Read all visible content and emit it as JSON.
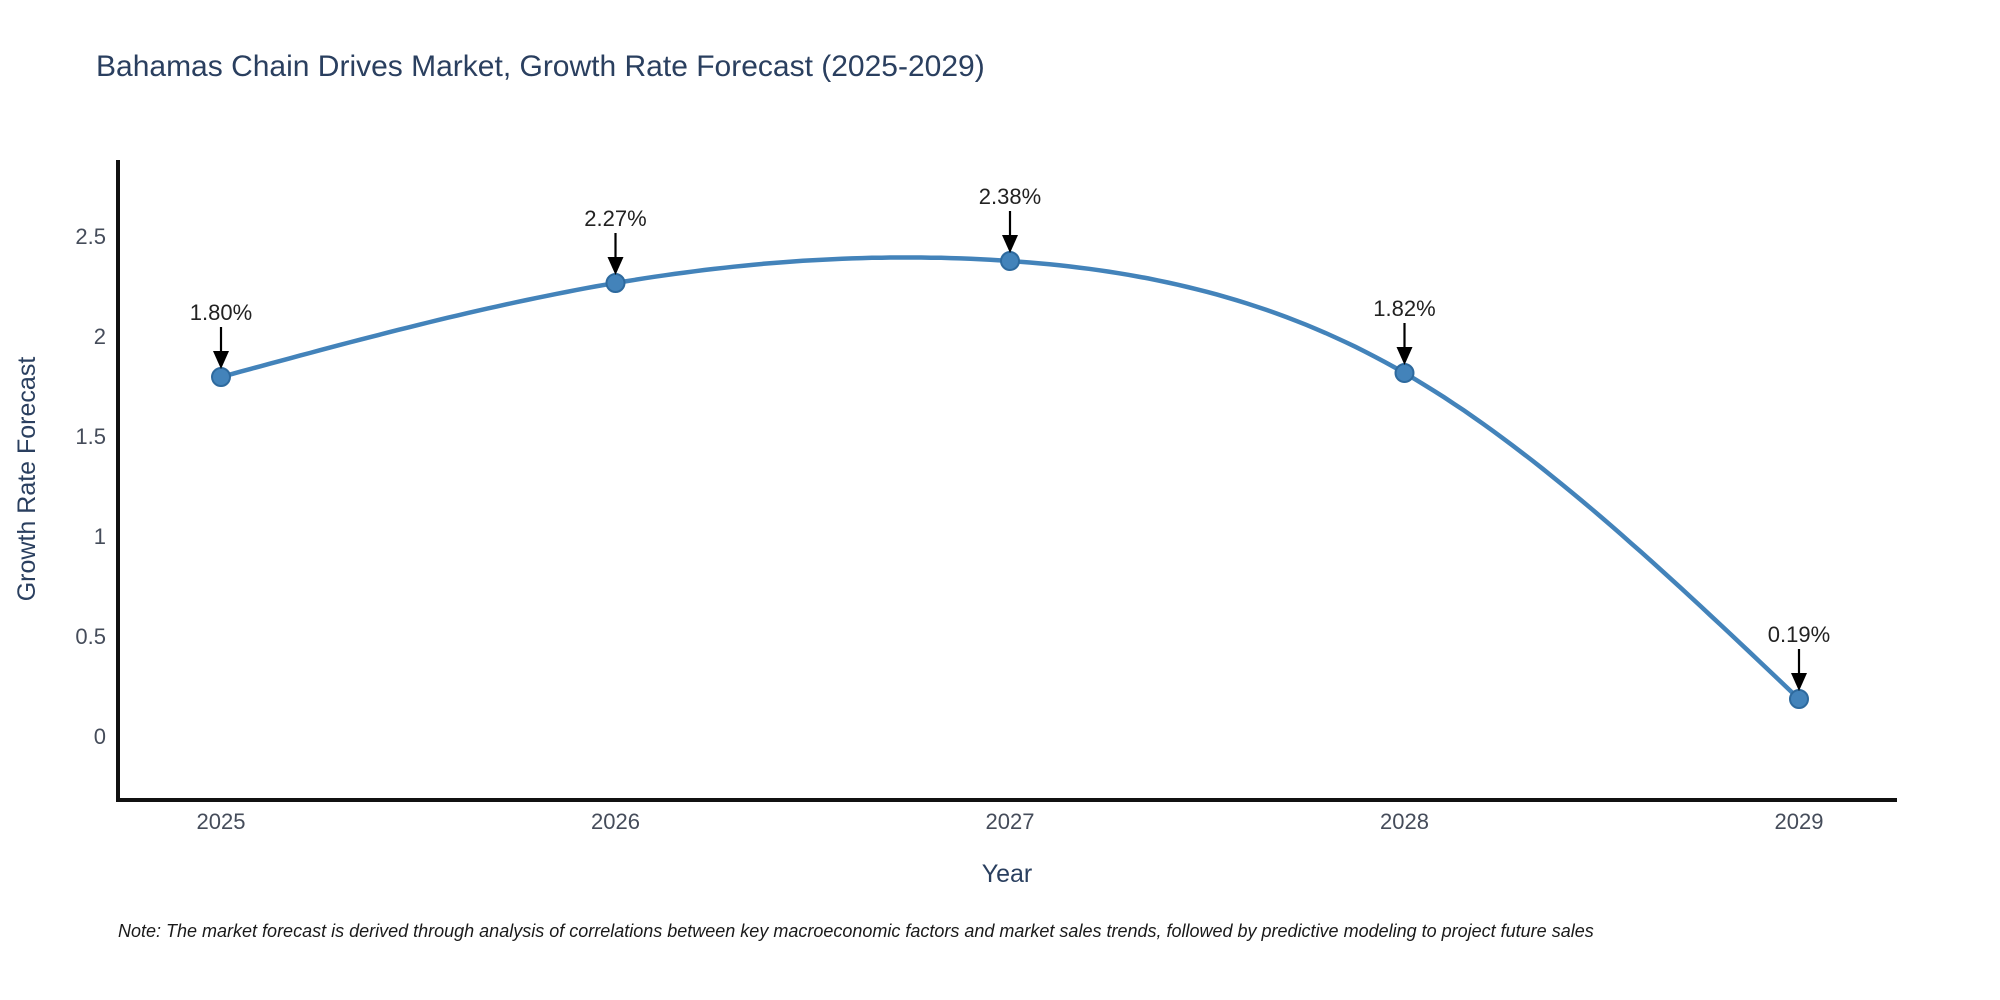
{
  "title": "Bahamas Chain Drives Market, Growth Rate Forecast (2025-2029)",
  "note": "Note: The market forecast is derived through analysis of correlations between key macroeconomic factors and market sales trends, followed by predictive modeling to project future sales",
  "chart_data": {
    "type": "line",
    "title": "Bahamas Chain Drives Market, Growth Rate Forecast (2025-2029)",
    "xlabel": "Year",
    "ylabel": "Growth Rate Forecast",
    "categories": [
      "2025",
      "2026",
      "2027",
      "2028",
      "2029"
    ],
    "values": [
      1.8,
      2.27,
      2.38,
      1.82,
      0.19
    ],
    "point_labels": [
      "1.80%",
      "2.27%",
      "2.38%",
      "1.82%",
      "0.19%"
    ],
    "yticks": [
      "0",
      "0.5",
      "1",
      "1.5",
      "2",
      "2.5"
    ],
    "ytick_values": [
      0,
      0.5,
      1,
      1.5,
      2,
      2.5
    ],
    "ylim": [
      -0.315,
      2.885
    ],
    "grid": false,
    "legend": "none",
    "line_shape": "spline",
    "colors": {
      "line": "#4383ba",
      "marker_fill": "#4383ba",
      "marker_edge": "#2e6a9e",
      "annotation_arrow": "#000000",
      "axis_line": "#111111",
      "title_text": "#2a3f5f",
      "tick_text": "#454c5a",
      "note_text": "#1a1a1a",
      "background": "#ffffff"
    }
  }
}
